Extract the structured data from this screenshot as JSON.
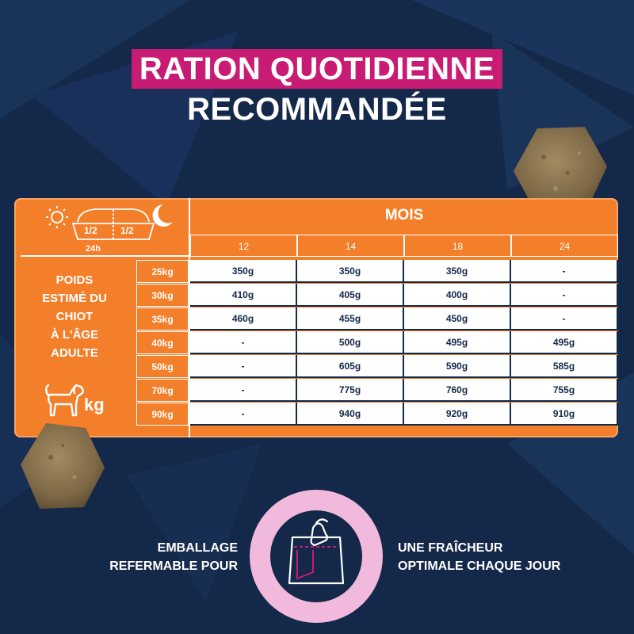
{
  "title": {
    "line1": "RATION QUOTIDIENNE",
    "line2": "RECOMMANDÉE"
  },
  "table": {
    "header": "MOIS",
    "legend": {
      "half_left": "1/2",
      "half_right": "1/2",
      "period": "24h",
      "icons": [
        "sun-icon",
        "bowl-icon",
        "moon-icon"
      ]
    },
    "months": [
      "12",
      "14",
      "18",
      "24"
    ],
    "row_label_lines": [
      "POIDS",
      "ESTIMÉ DU",
      "CHIOT",
      "À L'ÂGE",
      "ADULTE"
    ],
    "unit": "kg",
    "rows": [
      {
        "weight": "25kg",
        "values": [
          "350g",
          "350g",
          "350g",
          "-"
        ]
      },
      {
        "weight": "30kg",
        "values": [
          "410g",
          "405g",
          "400g",
          "-"
        ]
      },
      {
        "weight": "35kg",
        "values": [
          "460g",
          "455g",
          "450g",
          "-"
        ]
      },
      {
        "weight": "40kg",
        "values": [
          "-",
          "500g",
          "495g",
          "495g"
        ]
      },
      {
        "weight": "50kg",
        "values": [
          "-",
          "605g",
          "590g",
          "585g"
        ]
      },
      {
        "weight": "70kg",
        "values": [
          "-",
          "775g",
          "760g",
          "755g"
        ]
      },
      {
        "weight": "90kg",
        "values": [
          "-",
          "940g",
          "920g",
          "910g"
        ]
      }
    ]
  },
  "footer": {
    "left_lines": [
      "EMBALLAGE",
      "REFERMABLE POUR"
    ],
    "right_lines": [
      "UNE FRAÎCHEUR",
      "OPTIMALE CHAQUE JOUR"
    ],
    "icon": "resealable-bag-icon"
  },
  "colors": {
    "background": "#14284a",
    "orange": "#f47f2a",
    "pink": "#c81b73",
    "light_pink": "#f1b9dc"
  }
}
